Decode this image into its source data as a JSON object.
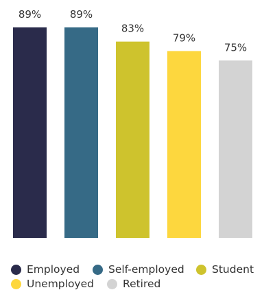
{
  "chart_data": {
    "type": "bar",
    "title": "",
    "xlabel": "",
    "ylabel": "",
    "ylim": [
      0,
      100
    ],
    "grid": false,
    "legend_position": "bottom",
    "categories": [
      "Employed",
      "Self-employed",
      "Student",
      "Unemployed",
      "Retired"
    ],
    "values": [
      89,
      89,
      83,
      79,
      75
    ],
    "value_labels": [
      "89%",
      "89%",
      "83%",
      "79%",
      "75%"
    ],
    "colors": [
      "#2a2b4b",
      "#366a86",
      "#cec32d",
      "#fdd73e",
      "#d3d3d3"
    ]
  },
  "legend": {
    "items": [
      {
        "label": "Employed",
        "color": "#2a2b4b"
      },
      {
        "label": "Self-employed",
        "color": "#366a86"
      },
      {
        "label": "Student",
        "color": "#cec32d"
      },
      {
        "label": "Unemployed",
        "color": "#fdd73e"
      },
      {
        "label": "Retired",
        "color": "#d3d3d3"
      }
    ]
  }
}
